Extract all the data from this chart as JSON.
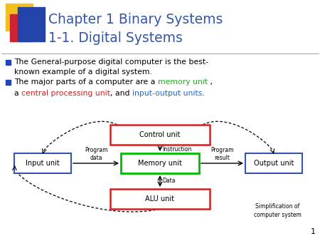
{
  "title_line1": "Chapter 1 Binary Systems",
  "title_line2": "1-1. Digital Systems",
  "title_color": "#3355aa",
  "bg_color": "#ffffff",
  "page_number": "1",
  "bullet_color": "#2244bb",
  "sq_yellow": "#f0c020",
  "sq_red": "#cc2233",
  "sq_blue": "#2244aa",
  "divider_color": "#aaaaaa",
  "box_red": "#cc2222",
  "box_green": "#00bb00",
  "box_blue": "#3355aa",
  "box_gray": "#999999",
  "text_green": "#22aa22",
  "text_red": "#cc2222",
  "text_blue": "#2266cc"
}
